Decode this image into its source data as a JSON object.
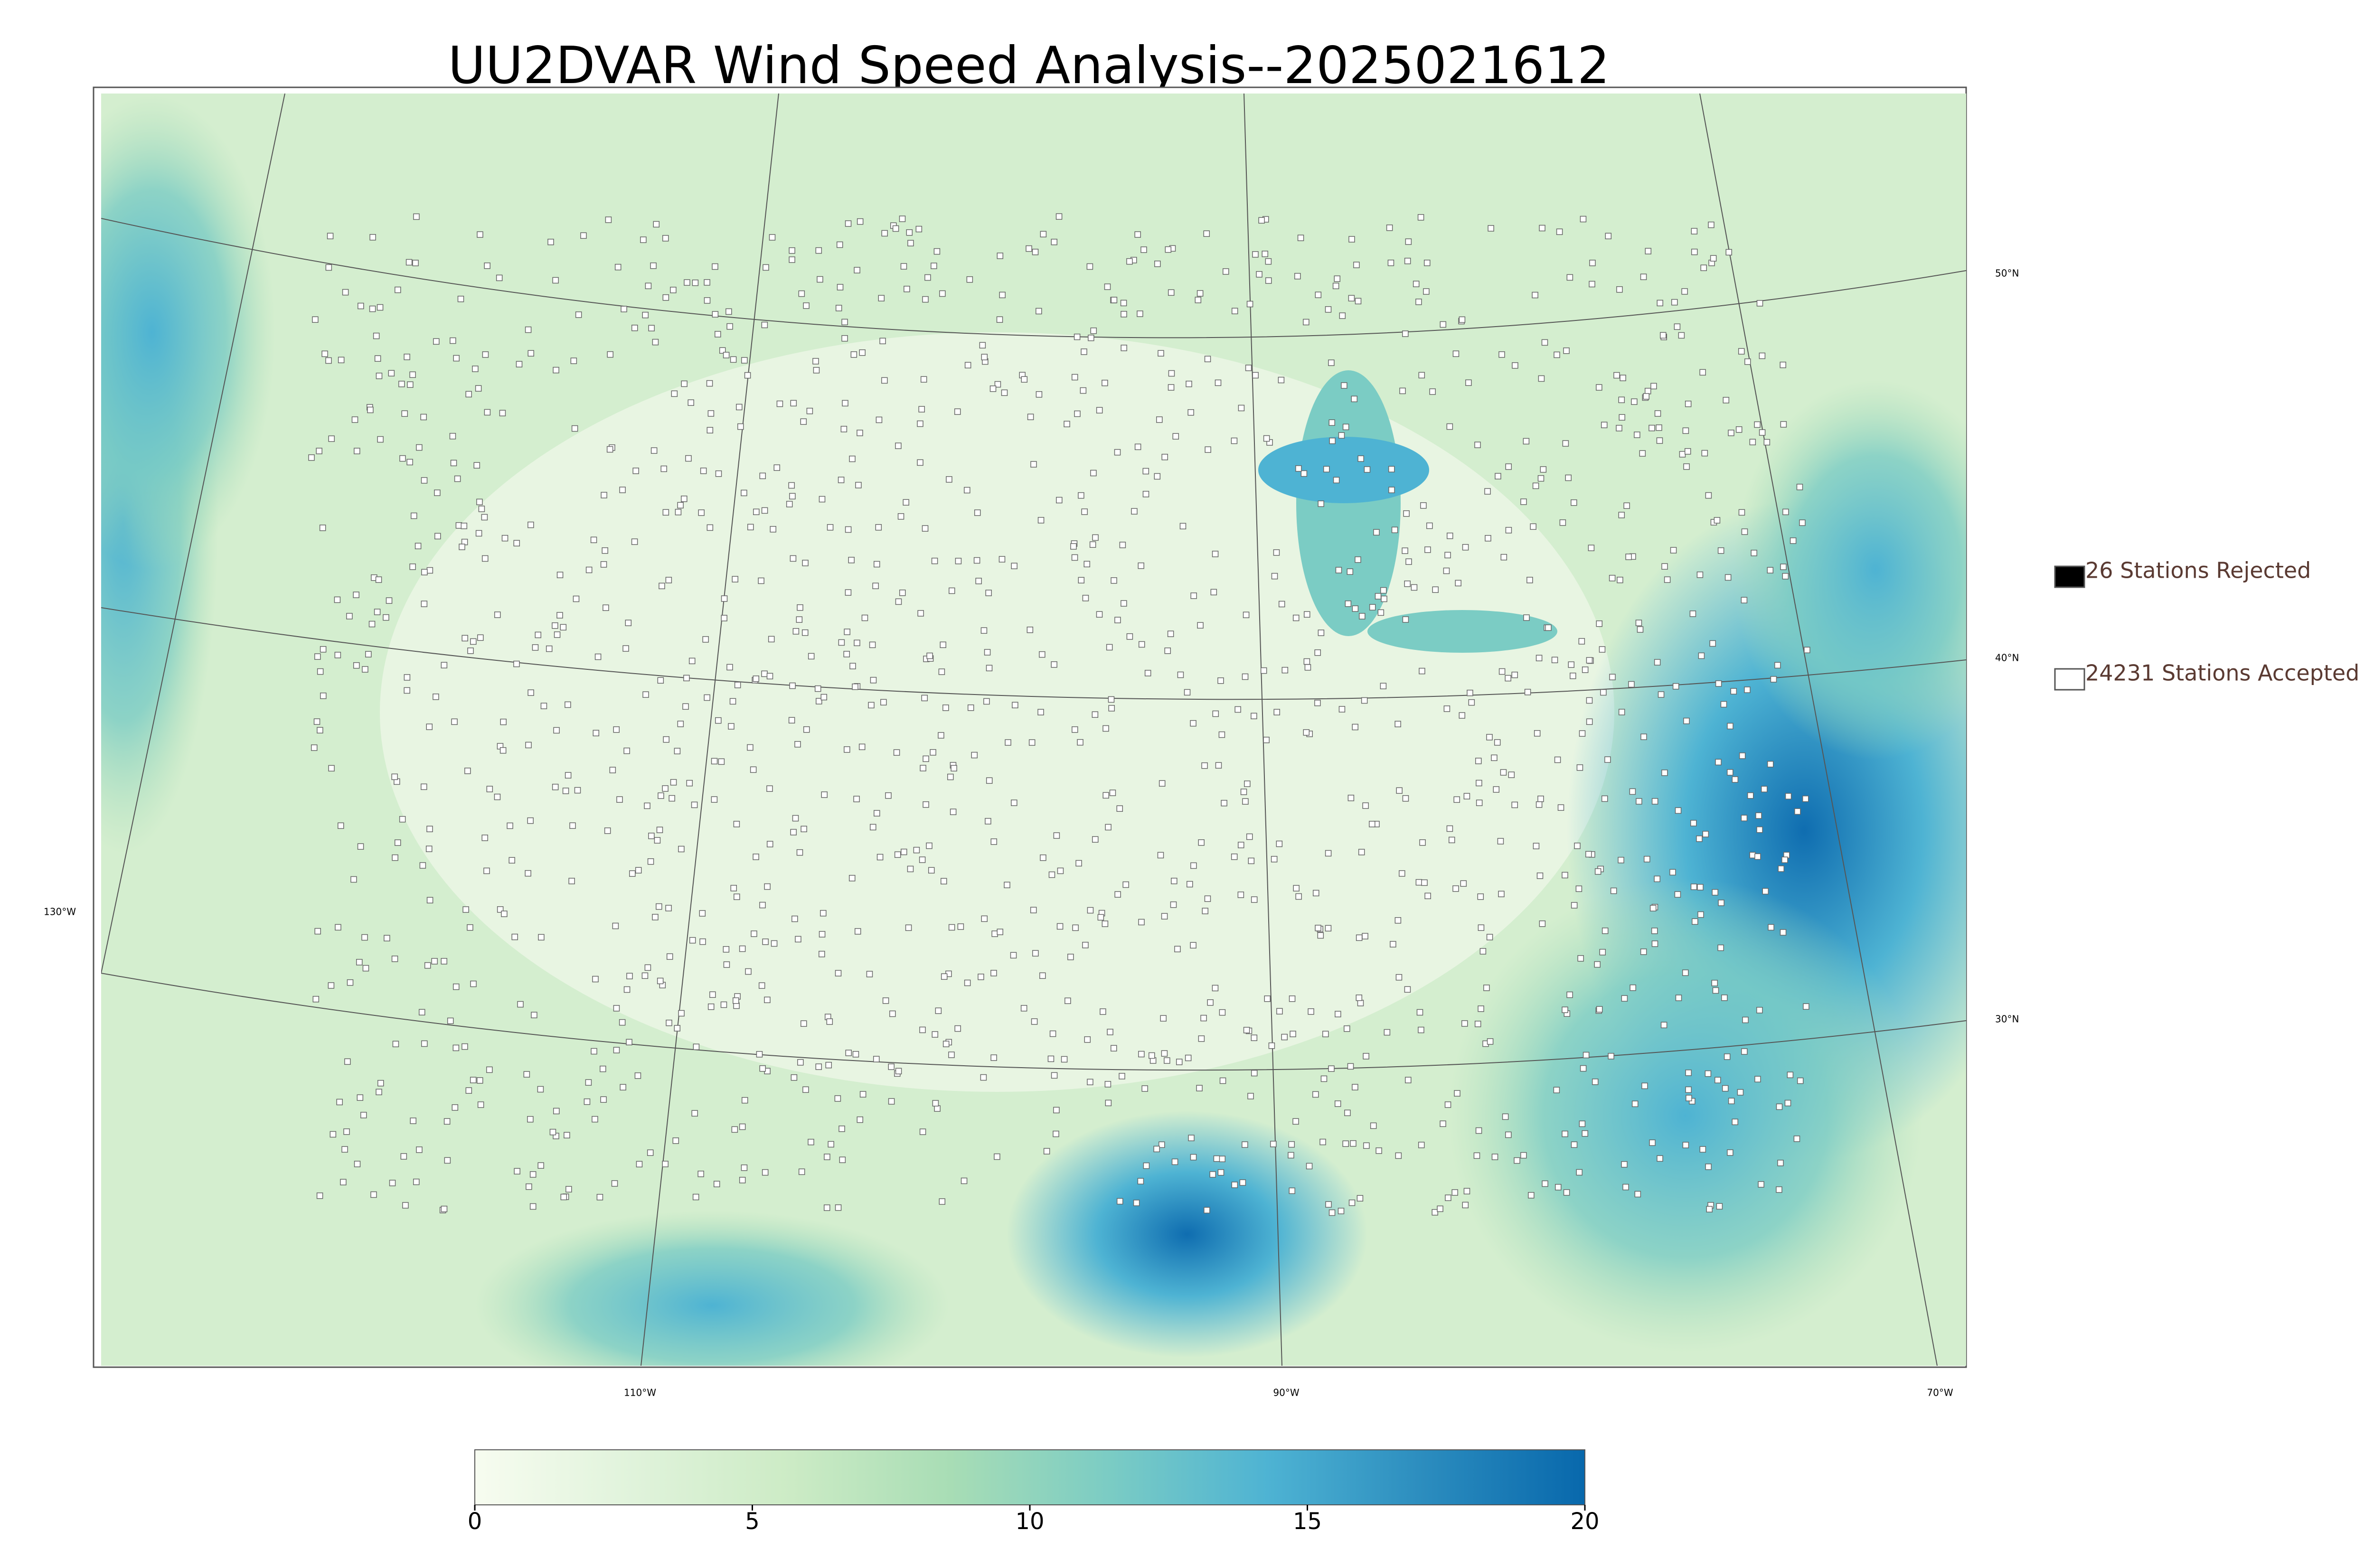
{
  "title": "UU2DVAR Wind Speed Analysis--2025021612",
  "legend": [
    {
      "label": "26 Stations Rejected",
      "color": "#000000"
    },
    {
      "label": "24231 Stations Accepted",
      "color": "#ffffff"
    }
  ],
  "graticule": {
    "lat_labels": [
      "50°N",
      "40°N",
      "30°N"
    ],
    "lon_labels": [
      "130°W",
      "110°W",
      "90°W",
      "70°W"
    ]
  },
  "colorbar": {
    "lim": [
      0,
      20
    ],
    "ticks": [
      0,
      5,
      10,
      15,
      20
    ],
    "colors": [
      "#f7fcf0",
      "#e0f3db",
      "#ccebc5",
      "#a8ddb5",
      "#7bccc4",
      "#4eb3d3",
      "#2b8cbe",
      "#0868ac"
    ]
  }
}
